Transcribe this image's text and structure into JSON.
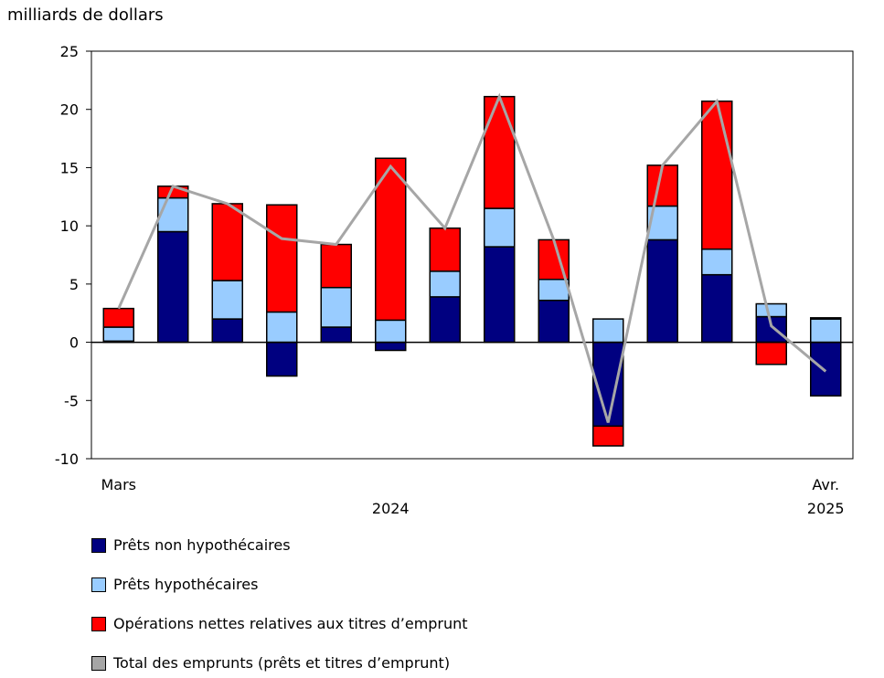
{
  "chart_data": {
    "type": "bar",
    "stacked": true,
    "ylabel": "milliards de dollars",
    "ylim": [
      -10,
      25
    ],
    "yticks": [
      -10,
      -5,
      0,
      5,
      10,
      15,
      20,
      25
    ],
    "grid": false,
    "legend_placement": "bottom",
    "categories": [
      "2024-03",
      "2024-04",
      "2024-05",
      "2024-06",
      "2024-07",
      "2024-08",
      "2024-09",
      "2024-10",
      "2024-11",
      "2024-12",
      "2025-01",
      "2025-02",
      "2025-03",
      "2025-04"
    ],
    "x_tick_labels": [
      {
        "label": "Mars",
        "index": 0
      },
      {
        "label": "Avr.",
        "index": 13
      }
    ],
    "year_labels": [
      {
        "label": "2024",
        "index": 5
      },
      {
        "label": "2025",
        "index": 13
      }
    ],
    "series": [
      {
        "name": "Prêts non hypothécaires",
        "color": "#000080",
        "values": [
          0.1,
          9.5,
          2.0,
          -2.9,
          1.3,
          -0.7,
          3.9,
          8.2,
          3.6,
          -7.2,
          8.8,
          5.8,
          2.2,
          -4.6
        ]
      },
      {
        "name": "Prêts hypothécaires",
        "color": "#99ccff",
        "values": [
          1.2,
          2.9,
          3.3,
          2.6,
          3.4,
          1.9,
          2.2,
          3.3,
          1.8,
          2.0,
          2.9,
          2.2,
          1.1,
          2.0
        ]
      },
      {
        "name": "Opérations nettes relatives aux titres d’emprunt",
        "color": "#ff0000",
        "values": [
          1.6,
          1.0,
          6.6,
          9.2,
          3.7,
          13.9,
          3.7,
          9.6,
          3.4,
          -1.7,
          3.5,
          12.7,
          -1.9,
          0.1
        ]
      }
    ],
    "line_series": {
      "name": "Total des emprunts (prêts et titres d’emprunt)",
      "color": "#a6a6a6",
      "values": [
        2.9,
        13.4,
        11.9,
        8.9,
        8.4,
        15.1,
        9.8,
        21.1,
        8.8,
        -6.9,
        15.2,
        20.7,
        1.4,
        -2.5
      ]
    }
  }
}
